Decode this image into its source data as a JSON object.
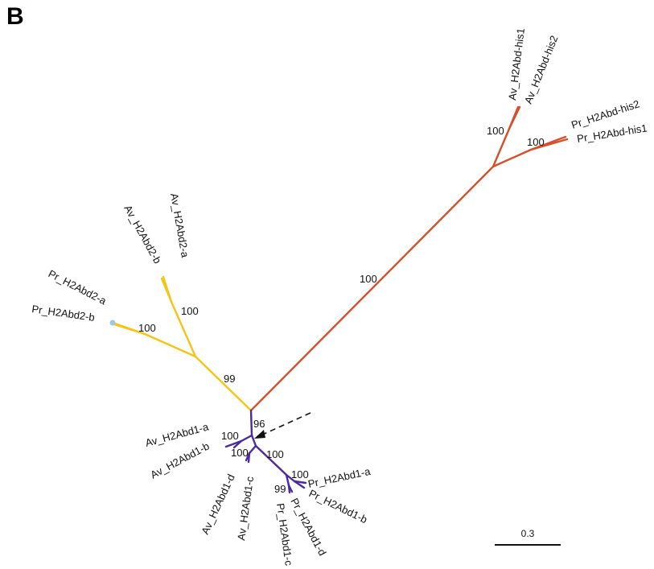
{
  "panel_label": "B",
  "colors": {
    "his_clade": "#d4502a",
    "abd2_clade": "#f2c618",
    "abd1_clade": "#4a2a9c",
    "tip_marker": "#9cc9e0",
    "text": "#111111"
  },
  "leaves": {
    "av_his1": "Av_H2Abd-his1",
    "av_his2": "Av_H2Abd-his2",
    "pr_his2": "Pr_H2Abd-his2",
    "pr_his1": "Pr_H2Abd-his1",
    "av_abd2_a": "Av_H2Abd2-a",
    "av_abd2_b": "Av_H2Abd2-b",
    "pr_abd2_a": "Pr_H2Abd2-a",
    "pr_abd2_b": "Pr_H2Abd2-b",
    "av_abd1_a": "Av_H2Abd1-a",
    "av_abd1_b": "Av_H2Abd1-b",
    "av_abd1_d": "Av_H2Abd1-d",
    "av_abd1_c": "Av_H2Abd1-c",
    "pr_abd1_a": "Pr_H2Abd1-a",
    "pr_abd1_b": "Pr_H2Abd1-b",
    "pr_abd1_d": "Pr_H2Abd1-d",
    "pr_abd1_c": "Pr_H2Abd1-c"
  },
  "support": {
    "his_long_branch": "100",
    "av_his_pair": "100",
    "pr_his_pair": "100",
    "abd2_root": "99",
    "av_abd2_pair": "100",
    "pr_abd2_pair": "100",
    "abd1_root": "96",
    "av_abd1_ab": "100",
    "av_abd1_cd": "100",
    "pr_abd1_group": "100",
    "pr_abd1_ab": "100",
    "pr_abd1_cd": "99"
  },
  "scale_bar": {
    "label": "0.3"
  }
}
